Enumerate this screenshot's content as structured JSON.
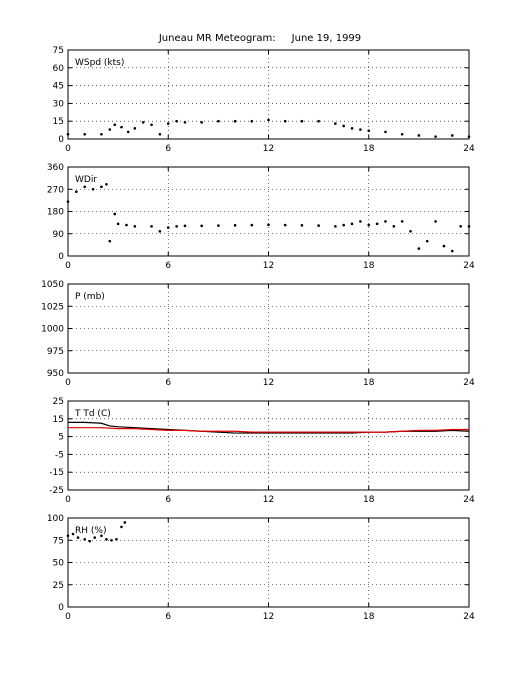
{
  "figure": {
    "title": "Juneau MR Meteogram:",
    "date": "June 19, 1999"
  },
  "chart_data": [
    {
      "type": "scatter",
      "label": "WSpd (kts)",
      "x_ticks": [
        "0",
        "6",
        "12",
        "18",
        "24"
      ],
      "y_ticks": [
        "0",
        "15",
        "30",
        "45",
        "60",
        "75"
      ],
      "xlim": [
        0,
        24
      ],
      "ylim": [
        0,
        75
      ],
      "grid": true,
      "series": [
        {
          "color": "#000000",
          "x": [
            0,
            1,
            2,
            2.5,
            2.8,
            3.2,
            3.6,
            4,
            4.5,
            5,
            5.5,
            6,
            6.5,
            7,
            8,
            9,
            10,
            11,
            12,
            13,
            14,
            15,
            16,
            16.5,
            17,
            17.5,
            18,
            19,
            20,
            21,
            22,
            23,
            24
          ],
          "y": [
            4,
            4,
            4,
            8,
            12,
            10,
            6,
            9,
            14,
            12,
            4,
            13,
            15,
            14,
            14,
            15,
            15,
            15,
            16,
            15,
            15,
            15,
            13,
            11,
            9,
            8,
            7,
            6,
            4,
            3,
            2,
            3,
            2
          ]
        }
      ]
    },
    {
      "type": "scatter",
      "label": "WDir",
      "x_ticks": [
        "0",
        "6",
        "12",
        "18",
        "24"
      ],
      "y_ticks": [
        "0",
        "90",
        "180",
        "270",
        "360"
      ],
      "xlim": [
        0,
        24
      ],
      "ylim": [
        0,
        360
      ],
      "grid": true,
      "series": [
        {
          "color": "#000000",
          "x": [
            0,
            0.5,
            1,
            1.5,
            2,
            2.3,
            2.5,
            2.8,
            3,
            3.5,
            4,
            5,
            5.5,
            6,
            6.5,
            7,
            8,
            9,
            10,
            11,
            12,
            13,
            14,
            15,
            16,
            16.5,
            17,
            17.5,
            18,
            18.5,
            19,
            19.5,
            20,
            20.5,
            21,
            21.5,
            22,
            22.5,
            23,
            23.5,
            24
          ],
          "y": [
            220,
            260,
            280,
            270,
            280,
            290,
            60,
            170,
            130,
            125,
            120,
            120,
            100,
            115,
            120,
            122,
            122,
            123,
            124,
            125,
            126,
            125,
            124,
            123,
            120,
            125,
            130,
            140,
            125,
            130,
            140,
            120,
            140,
            100,
            30,
            60,
            140,
            40,
            20,
            120,
            120
          ]
        }
      ]
    },
    {
      "type": "scatter",
      "label": "P (mb)",
      "x_ticks": [
        "0",
        "6",
        "12",
        "18",
        "24"
      ],
      "y_ticks": [
        "950",
        "975",
        "1000",
        "1025",
        "1050"
      ],
      "xlim": [
        0,
        24
      ],
      "ylim": [
        950,
        1050
      ],
      "grid": true,
      "series": []
    },
    {
      "type": "line",
      "label": "T Td (C)",
      "x_ticks": [
        "0",
        "6",
        "12",
        "18",
        "24"
      ],
      "y_ticks": [
        "-25",
        "-15",
        "-5",
        "5",
        "15",
        "25"
      ],
      "xlim": [
        0,
        24
      ],
      "ylim": [
        -25,
        25
      ],
      "grid": true,
      "series": [
        {
          "color": "#000000",
          "x": [
            0,
            1,
            2,
            2.5,
            3,
            4,
            5,
            6,
            7,
            8,
            9,
            10,
            11,
            12,
            13,
            14,
            15,
            16,
            17,
            18,
            19,
            20,
            21,
            22,
            23,
            24
          ],
          "y": [
            13,
            13,
            12.5,
            11,
            10.5,
            10,
            9.5,
            9,
            8.5,
            8,
            7.5,
            7,
            7,
            7,
            7,
            7,
            7,
            7,
            7,
            7.5,
            7.5,
            8,
            8,
            8,
            8.5,
            8
          ]
        },
        {
          "color": "#e00000",
          "x": [
            0,
            1,
            2,
            3,
            4,
            5,
            6,
            7,
            8,
            9,
            10,
            11,
            12,
            13,
            14,
            15,
            16,
            17,
            18,
            19,
            20,
            21,
            22,
            23,
            24
          ],
          "y": [
            10,
            10,
            10,
            9.5,
            9.5,
            9,
            8.5,
            8.5,
            8,
            8,
            8,
            7.5,
            7.5,
            7.5,
            7.5,
            7.5,
            7.5,
            7.5,
            7.5,
            7.5,
            8,
            8.5,
            8.5,
            9,
            9
          ]
        }
      ]
    },
    {
      "type": "scatter",
      "label": "RH (%)",
      "x_ticks": [
        "0",
        "6",
        "12",
        "18",
        "24"
      ],
      "y_ticks": [
        "0",
        "25",
        "50",
        "75",
        "100"
      ],
      "xlim": [
        0,
        24
      ],
      "ylim": [
        0,
        100
      ],
      "grid": true,
      "series": [
        {
          "color": "#000000",
          "x": [
            0,
            0.3,
            0.6,
            1,
            1.3,
            1.6,
            2,
            2.3,
            2.6,
            2.9,
            3.2,
            3.4
          ],
          "y": [
            80,
            82,
            78,
            76,
            74,
            78,
            80,
            76,
            75,
            76,
            90,
            95
          ]
        }
      ]
    }
  ]
}
